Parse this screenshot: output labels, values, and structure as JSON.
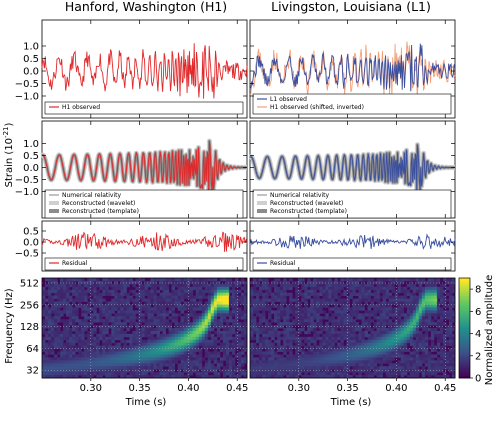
{
  "titles": {
    "left": "Hanford, Washington (H1)",
    "right": "Livingston, Louisiana (L1)"
  },
  "axis": {
    "strain_label": "Strain (10",
    "strain_exp": "-21",
    "strain_close": ")",
    "freq_label": "Frequency (Hz)",
    "time_label": "Time (s)",
    "cbar_label": "Normalized amplitude"
  },
  "colors": {
    "h1": "#e0292b",
    "l1": "#3a4fa0",
    "h1_shifted": "#f3a07a",
    "nr": "#666666",
    "wavelet": "#cfcfcf",
    "template": "#8c8c8c"
  },
  "legends": {
    "row1_left": [
      "H1 observed"
    ],
    "row1_right": [
      "L1 observed",
      "H1 observed (shifted, inverted)"
    ],
    "row2": [
      "Numerical relativity",
      "Reconstructed (wavelet)",
      "Reconstructed (template)"
    ],
    "row3": [
      "Residual"
    ]
  },
  "ticks": {
    "strain": [
      "1.0",
      "0.5",
      "0.0",
      "−0.5",
      "−1.0"
    ],
    "residual": [
      "0.5",
      "0.0",
      "−0.5"
    ],
    "freq": [
      "512",
      "256",
      "128",
      "64",
      "32"
    ],
    "time": [
      "0.30",
      "0.35",
      "0.40",
      "0.45"
    ],
    "cbar": [
      "8",
      "6",
      "4",
      "2",
      "0"
    ]
  },
  "chart_data": [
    {
      "type": "line",
      "panel": "H1 observed",
      "title": "Hanford, Washington (H1)",
      "ylabel": "Strain (10^-21)",
      "xlim": [
        0.25,
        0.46
      ],
      "ylim": [
        -1.3,
        1.3
      ],
      "series": [
        {
          "name": "H1 observed",
          "x": [
            0.25,
            0.26,
            0.27,
            0.28,
            0.29,
            0.3,
            0.31,
            0.32,
            0.33,
            0.34,
            0.35,
            0.36,
            0.37,
            0.38,
            0.39,
            0.4,
            0.405,
            0.41,
            0.415,
            0.42,
            0.425,
            0.43,
            0.435,
            0.44,
            0.45,
            0.46
          ],
          "values": [
            0.05,
            0.3,
            -0.4,
            0.2,
            -0.3,
            0.4,
            0.1,
            -0.5,
            0.4,
            0.3,
            -0.4,
            0.3,
            -0.3,
            0.6,
            -0.7,
            0.9,
            -0.8,
            1.2,
            -1.0,
            1.3,
            -0.9,
            0.6,
            -0.5,
            0.3,
            -0.2,
            0.1
          ]
        }
      ]
    },
    {
      "type": "line",
      "panel": "L1 observed vs H1 shifted",
      "title": "Livingston, Louisiana (L1)",
      "xlim": [
        0.25,
        0.46
      ],
      "ylim": [
        -1.3,
        1.3
      ],
      "series": [
        {
          "name": "L1 observed",
          "x": [
            0.25,
            0.26,
            0.27,
            0.28,
            0.29,
            0.3,
            0.31,
            0.32,
            0.33,
            0.34,
            0.35,
            0.36,
            0.37,
            0.38,
            0.39,
            0.4,
            0.405,
            0.41,
            0.415,
            0.42,
            0.425,
            0.43,
            0.435,
            0.44,
            0.45,
            0.46
          ],
          "values": [
            0.2,
            -0.3,
            0.3,
            -0.2,
            0.2,
            -0.3,
            0.3,
            -0.2,
            0.3,
            -0.3,
            0.2,
            -0.4,
            0.3,
            -0.5,
            0.5,
            -0.7,
            0.8,
            -0.9,
            1.0,
            -1.0,
            0.7,
            -0.5,
            0.4,
            -0.3,
            0.2,
            0.2
          ]
        },
        {
          "name": "H1 observed (shifted, inverted)",
          "x": [
            0.25,
            0.26,
            0.27,
            0.28,
            0.29,
            0.3,
            0.31,
            0.32,
            0.33,
            0.34,
            0.35,
            0.36,
            0.37,
            0.38,
            0.39,
            0.4,
            0.405,
            0.41,
            0.415,
            0.42,
            0.425,
            0.43,
            0.435,
            0.44,
            0.45,
            0.46
          ],
          "values": [
            -0.1,
            -0.4,
            0.4,
            -0.2,
            0.3,
            -0.4,
            0.5,
            0.4,
            -0.4,
            0.5,
            -0.3,
            0.3,
            -0.6,
            0.7,
            -0.9,
            0.8,
            -1.2,
            1.0,
            -1.3,
            0.9,
            -0.6,
            0.5,
            -0.3,
            0.2,
            0.1,
            0.6
          ]
        }
      ]
    },
    {
      "type": "line",
      "panel": "H1 reconstructed",
      "xlim": [
        0.25,
        0.46
      ],
      "ylim": [
        -1.3,
        1.3
      ],
      "series": [
        {
          "name": "Numerical relativity",
          "envelope": "chirp",
          "peak_time": 0.42,
          "peak_amplitude": 1.1
        },
        {
          "name": "Reconstructed (wavelet)",
          "envelope": "chirp",
          "peak_time": 0.42,
          "peak_amplitude": 1.1
        },
        {
          "name": "Reconstructed (template)",
          "envelope": "chirp",
          "peak_time": 0.42,
          "peak_amplitude": 1.1
        }
      ]
    },
    {
      "type": "line",
      "panel": "L1 reconstructed",
      "xlim": [
        0.25,
        0.46
      ],
      "ylim": [
        -1.3,
        1.3
      ],
      "series": [
        {
          "name": "Numerical relativity",
          "envelope": "chirp",
          "peak_time": 0.42,
          "peak_amplitude": 0.95
        },
        {
          "name": "Reconstructed (wavelet)",
          "envelope": "chirp",
          "peak_time": 0.42,
          "peak_amplitude": 0.95
        },
        {
          "name": "Reconstructed (template)",
          "envelope": "chirp",
          "peak_time": 0.42,
          "peak_amplitude": 0.95
        }
      ]
    },
    {
      "type": "line",
      "panel": "H1 residual",
      "xlim": [
        0.25,
        0.46
      ],
      "ylim": [
        -0.7,
        0.7
      ],
      "series": [
        {
          "name": "Residual",
          "noise_amplitude": 0.45
        }
      ]
    },
    {
      "type": "line",
      "panel": "L1 residual",
      "xlim": [
        0.25,
        0.46
      ],
      "ylim": [
        -0.7,
        0.7
      ],
      "series": [
        {
          "name": "Residual",
          "noise_amplitude": 0.35
        }
      ]
    },
    {
      "type": "heatmap",
      "panel": "H1 time-frequency",
      "xlabel": "Time (s)",
      "ylabel": "Frequency (Hz)",
      "xlim": [
        0.25,
        0.46
      ],
      "ylim": [
        25,
        600
      ],
      "yscale": "log",
      "zlim": [
        0,
        9
      ],
      "track": {
        "t": [
          0.3,
          0.36,
          0.39,
          0.41,
          0.42,
          0.43
        ],
        "f": [
          35,
          45,
          60,
          90,
          150,
          300
        ]
      },
      "peak": {
        "t": 0.42,
        "f": 250,
        "value": 9
      }
    },
    {
      "type": "heatmap",
      "panel": "L1 time-frequency",
      "xlabel": "Time (s)",
      "xlim": [
        0.25,
        0.46
      ],
      "ylim": [
        25,
        600
      ],
      "yscale": "log",
      "zlim": [
        0,
        9
      ],
      "track": {
        "t": [
          0.3,
          0.36,
          0.39,
          0.41,
          0.42,
          0.43
        ],
        "f": [
          35,
          45,
          60,
          90,
          150,
          300
        ]
      },
      "peak": {
        "t": 0.42,
        "f": 220,
        "value": 6.5
      }
    }
  ]
}
